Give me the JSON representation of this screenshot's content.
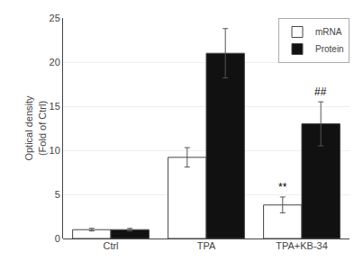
{
  "chart_data": {
    "type": "bar",
    "categories": [
      "Ctrl",
      "TPA",
      "TPA+KB-34"
    ],
    "ylabel": "Optical density\n(Fold of Ctrl)",
    "series": [
      {
        "name": "mRNA",
        "color": "#ffffff",
        "values": [
          1.0,
          9.2,
          3.8
        ],
        "errors": [
          0.15,
          1.1,
          0.9
        ]
      },
      {
        "name": "Protein",
        "color": "#111111",
        "values": [
          1.0,
          21.0,
          13.0
        ],
        "errors": [
          0.15,
          2.8,
          2.5
        ]
      }
    ],
    "ylim": [
      0,
      25
    ],
    "yticks": [
      0,
      5,
      10,
      15,
      20,
      25
    ],
    "legend": "upper right",
    "annotations": [
      {
        "text": "**",
        "category": "TPA+KB-34",
        "series": "mRNA"
      },
      {
        "text": "##",
        "category": "TPA+KB-34",
        "series": "Protein"
      }
    ]
  }
}
